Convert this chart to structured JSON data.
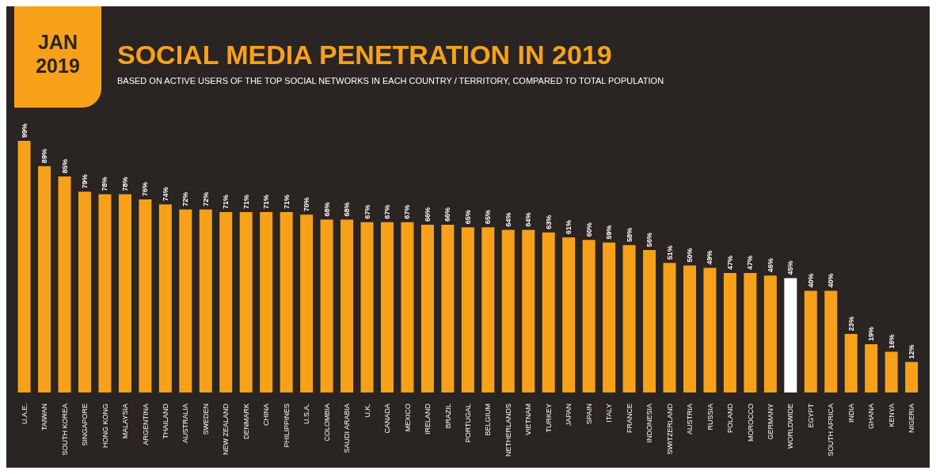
{
  "chart_data": {
    "type": "bar",
    "title": "SOCIAL MEDIA PENETRATION IN 2019",
    "subtitle": "BASED ON ACTIVE USERS OF THE TOP SOCIAL NETWORKS IN EACH COUNTRY / TERRITORY, COMPARED TO TOTAL POPULATION",
    "annotations": [
      "JAN\n2019"
    ],
    "categories": [
      "U.A.E.",
      "TAIWAN",
      "SOUTH KOREA",
      "SINGAPORE",
      "HONG KONG",
      "MALAYSIA",
      "ARGENTINA",
      "THAILAND",
      "AUSTRALIA",
      "SWEDEN",
      "NEW ZEALAND",
      "DENMARK",
      "CHINA",
      "PHILIPPINES",
      "U.S.A.",
      "COLOMBIA",
      "SAUDI ARABIA",
      "U.K.",
      "CANADA",
      "MEXICO",
      "IRELAND",
      "BRAZIL",
      "PORTUGAL",
      "BELGIUM",
      "NETHERLANDS",
      "VIETNAM",
      "TURKEY",
      "JAPAN",
      "SPAIN",
      "ITALY",
      "FRANCE",
      "INDONESIA",
      "SWITZERLAND",
      "AUSTRIA",
      "RUSSIA",
      "POLAND",
      "MOROCCO",
      "GERMANY",
      "WORLDWIDE",
      "EGYPT",
      "SOUTH AFRICA",
      "INDIA",
      "GHANA",
      "KENYA",
      "NIGERIA"
    ],
    "values": [
      99,
      89,
      85,
      79,
      78,
      78,
      76,
      74,
      72,
      72,
      71,
      71,
      71,
      71,
      70,
      68,
      68,
      67,
      67,
      67,
      66,
      66,
      65,
      65,
      64,
      64,
      63,
      61,
      60,
      59,
      58,
      56,
      51,
      50,
      49,
      47,
      47,
      46,
      45,
      40,
      40,
      23,
      19,
      16,
      12
    ],
    "value_labels": [
      "99%",
      "89%",
      "85%",
      "79%",
      "78%",
      "78%",
      "76%",
      "74%",
      "72%",
      "72%",
      "71%",
      "71%",
      "71%",
      "71%",
      "70%",
      "68%",
      "68%",
      "67%",
      "67%",
      "67%",
      "66%",
      "66%",
      "65%",
      "65%",
      "64%",
      "64%",
      "63%",
      "61%",
      "60%",
      "59%",
      "58%",
      "56%",
      "51%",
      "50%",
      "49%",
      "47%",
      "47%",
      "46%",
      "45%",
      "40%",
      "40%",
      "23%",
      "19%",
      "16%",
      "12%"
    ],
    "colors": [
      "#f7a11a",
      "#f7a11a",
      "#f7a11a",
      "#f7a11a",
      "#f7a11a",
      "#f7a11a",
      "#f7a11a",
      "#f7a11a",
      "#f7a11a",
      "#f7a11a",
      "#f7a11a",
      "#f7a11a",
      "#f7a11a",
      "#f7a11a",
      "#f7a11a",
      "#f7a11a",
      "#f7a11a",
      "#f7a11a",
      "#f7a11a",
      "#f7a11a",
      "#f7a11a",
      "#f7a11a",
      "#f7a11a",
      "#f7a11a",
      "#f7a11a",
      "#f7a11a",
      "#f7a11a",
      "#f7a11a",
      "#f7a11a",
      "#f7a11a",
      "#f7a11a",
      "#f7a11a",
      "#f7a11a",
      "#f7a11a",
      "#f7a11a",
      "#f7a11a",
      "#f7a11a",
      "#f7a11a",
      "#ffffff",
      "#f7a11a",
      "#f7a11a",
      "#f7a11a",
      "#f7a11a",
      "#f7a11a",
      "#f7a11a"
    ],
    "grid": false,
    "legend": false
  }
}
